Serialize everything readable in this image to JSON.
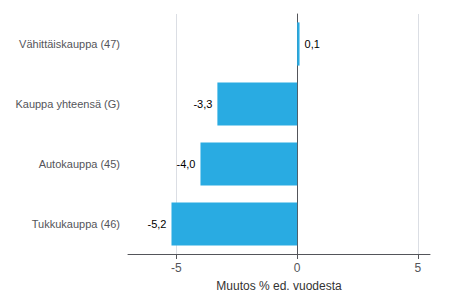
{
  "chart_data": {
    "type": "bar",
    "orientation": "horizontal",
    "categories": [
      "Tukkukauppa (46)",
      "Autokauppa (45)",
      "Kauppa yhteensä (G)",
      "Vähittäiskauppa (47)"
    ],
    "values": [
      -5.2,
      -4.0,
      -3.3,
      0.1
    ],
    "value_labels": [
      "-5,2",
      "-4,0",
      "-3,3",
      "0,1"
    ],
    "data_labels": true,
    "color": "#29abe2",
    "xlabel": "Muutos % ed. vuodesta",
    "xlim": [
      -7.0,
      5.5
    ],
    "xticks": [
      -5,
      0,
      5
    ],
    "grid": true
  }
}
